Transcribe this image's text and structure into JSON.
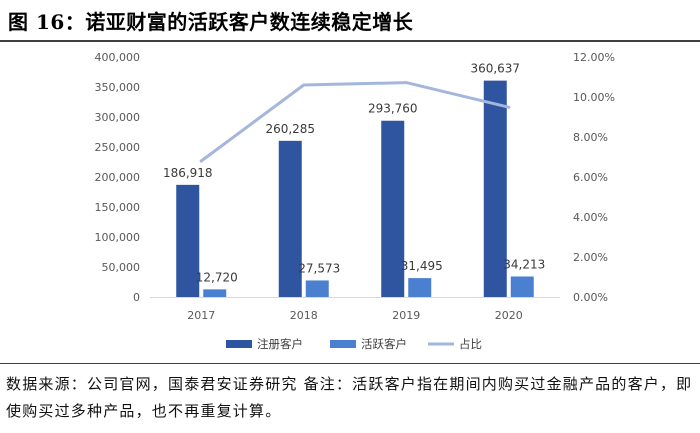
{
  "figure": {
    "title": "图 16：诺亚财富的活跃客户数连续稳定增长",
    "source_note": "数据来源：公司官网，国泰君安证券研究  备注：活跃客户指在期间内购买过金融产品的客户，即使购买过多种产品，也不再重复计算。"
  },
  "colors": {
    "registered": "#2f54a0",
    "active": "#4b7fd0",
    "ratio": "#a5b6dd",
    "axis_text": "#595959",
    "axis_line": "#d9d9d9"
  },
  "chart_data": {
    "type": "bar",
    "categories": [
      "2017",
      "2018",
      "2019",
      "2020"
    ],
    "series": [
      {
        "name": "注册客户",
        "type": "bar",
        "axis": "left",
        "values": [
          186918,
          260285,
          293760,
          360637
        ],
        "labels": [
          "186,918",
          "260,285",
          "293,760",
          "360,637"
        ]
      },
      {
        "name": "活跃客户",
        "type": "bar",
        "axis": "left",
        "values": [
          12720,
          27573,
          31495,
          34213
        ],
        "labels": [
          "12,720",
          "27,573",
          "31,495",
          "34,213"
        ]
      },
      {
        "name": "占比",
        "type": "line",
        "axis": "right",
        "values": [
          6.8,
          10.6,
          10.72,
          9.49
        ]
      }
    ],
    "y_left": {
      "min": 0,
      "max": 400000,
      "ticks": [
        "0",
        "50,000",
        "100,000",
        "150,000",
        "200,000",
        "250,000",
        "300,000",
        "350,000",
        "400,000"
      ]
    },
    "y_right": {
      "min": 0,
      "max": 12,
      "ticks": [
        "0.00%",
        "2.00%",
        "4.00%",
        "6.00%",
        "8.00%",
        "10.00%",
        "12.00%"
      ]
    },
    "grid": false,
    "legend": "bottom"
  }
}
